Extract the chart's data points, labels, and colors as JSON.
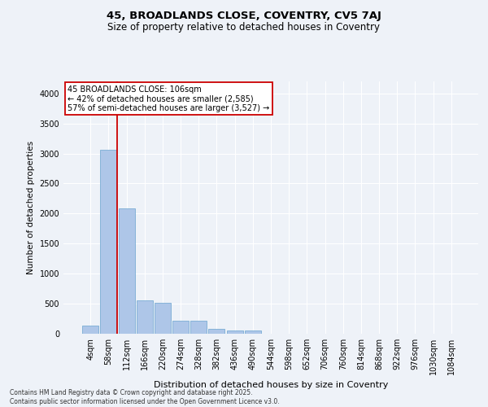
{
  "title_line1": "45, BROADLANDS CLOSE, COVENTRY, CV5 7AJ",
  "title_line2": "Size of property relative to detached houses in Coventry",
  "xlabel": "Distribution of detached houses by size in Coventry",
  "ylabel": "Number of detached properties",
  "categories": [
    "4sqm",
    "58sqm",
    "112sqm",
    "166sqm",
    "220sqm",
    "274sqm",
    "328sqm",
    "382sqm",
    "436sqm",
    "490sqm",
    "544sqm",
    "598sqm",
    "652sqm",
    "706sqm",
    "760sqm",
    "814sqm",
    "868sqm",
    "922sqm",
    "976sqm",
    "1030sqm",
    "1084sqm"
  ],
  "values": [
    130,
    3060,
    2080,
    550,
    510,
    220,
    220,
    85,
    60,
    50,
    0,
    0,
    0,
    0,
    0,
    0,
    0,
    0,
    0,
    0,
    0
  ],
  "bar_color": "#aec6e8",
  "bar_edge_color": "#7aadd4",
  "property_label": "45 BROADLANDS CLOSE: 106sqm",
  "annotation_line1": "← 42% of detached houses are smaller (2,585)",
  "annotation_line2": "57% of semi-detached houses are larger (3,527) →",
  "box_color": "#cc0000",
  "vline_color": "#cc0000",
  "vline_x": 1.5,
  "ylim": [
    0,
    4200
  ],
  "yticks": [
    0,
    500,
    1000,
    1500,
    2000,
    2500,
    3000,
    3500,
    4000
  ],
  "footer_line1": "Contains HM Land Registry data © Crown copyright and database right 2025.",
  "footer_line2": "Contains public sector information licensed under the Open Government Licence v3.0.",
  "bg_color": "#eef2f8",
  "plot_bg_color": "#eef2f8",
  "grid_color": "#ffffff",
  "title1_fontsize": 9.5,
  "title2_fontsize": 8.5,
  "xlabel_fontsize": 8,
  "ylabel_fontsize": 7.5,
  "tick_fontsize": 7,
  "annotation_fontsize": 7,
  "footer_fontsize": 5.5
}
